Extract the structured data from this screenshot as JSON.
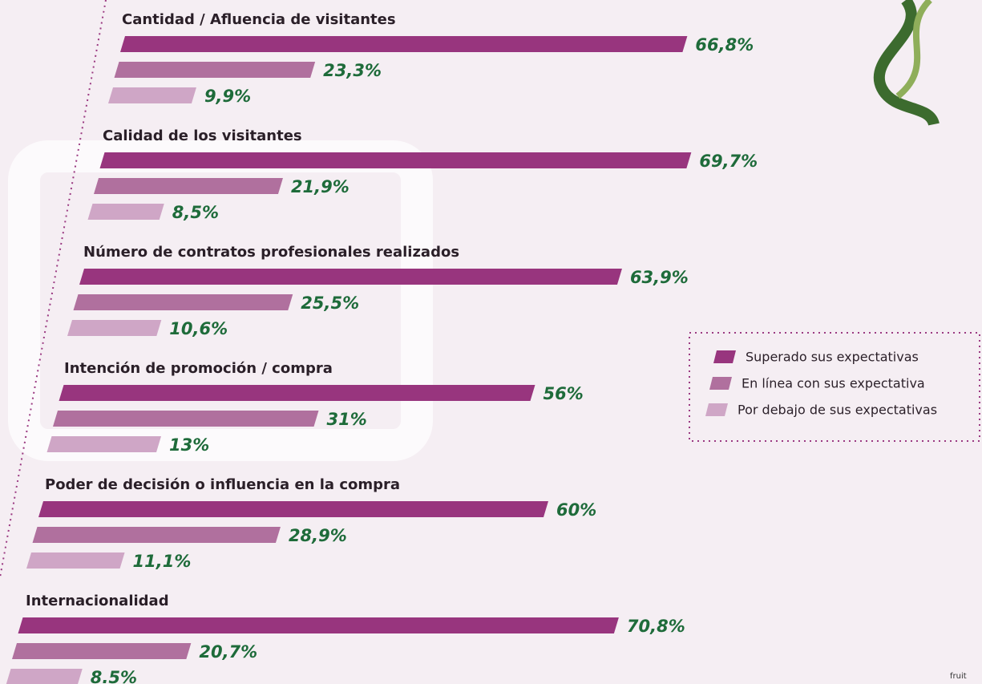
{
  "chart_data": {
    "type": "bar",
    "orientation": "horizontal",
    "categories": [
      "Cantidad / Afluencia de visitantes",
      "Calidad de los visitantes",
      "Número de contratos profesionales realizados",
      "Intención de promoción / compra",
      "Poder de decisión o influencia en la compra",
      "Internacionalidad"
    ],
    "series": [
      {
        "name": "Superado sus expectativas",
        "color": "#98357e",
        "values": [
          66.8,
          69.7,
          63.9,
          56,
          60,
          70.8
        ],
        "value_labels": [
          "66,8%",
          "69,7%",
          "63,9%",
          "56%",
          "60%",
          "70,8%"
        ]
      },
      {
        "name": "En línea con sus expectativa",
        "color": "#b0709e",
        "values": [
          23.3,
          21.9,
          25.5,
          31,
          28.9,
          20.7
        ],
        "value_labels": [
          "23,3%",
          "21,9%",
          "25,5%",
          "31%",
          "28,9%",
          "20,7%"
        ]
      },
      {
        "name": "Por debajo de sus expectativas",
        "color": "#cfa6c6",
        "values": [
          9.9,
          8.5,
          10.6,
          13,
          11.1,
          8.5
        ],
        "value_labels": [
          "9,9%",
          "8,5%",
          "10,6%",
          "13%",
          "11,1%",
          "8.5%"
        ]
      }
    ]
  },
  "footer": "fruit"
}
